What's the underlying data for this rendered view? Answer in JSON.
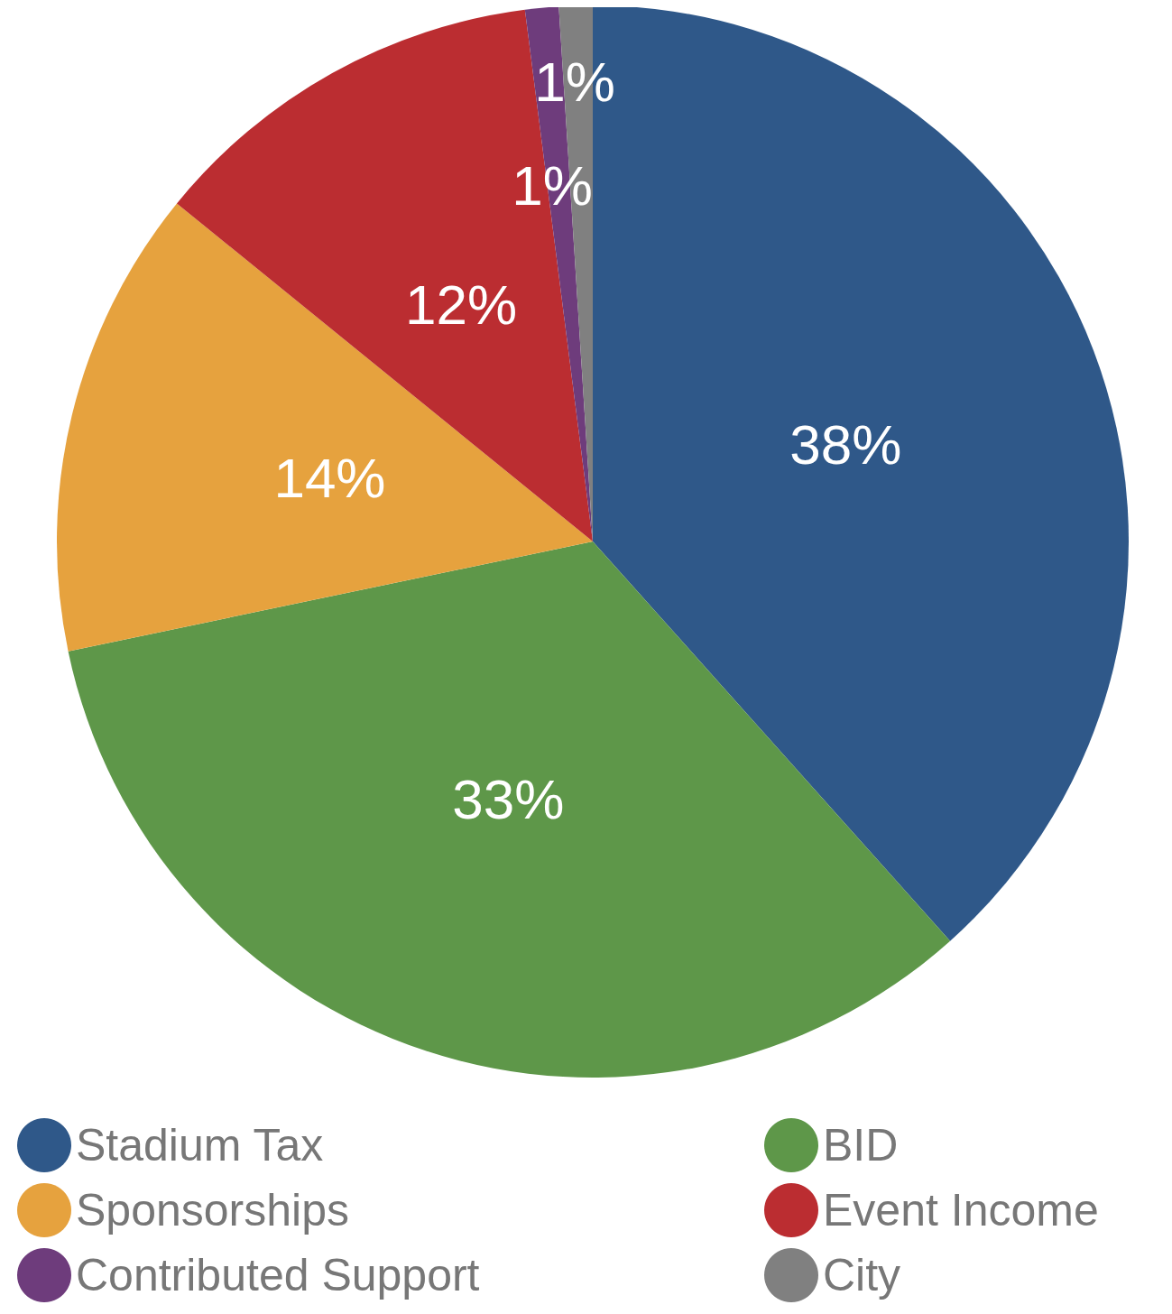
{
  "chart_data": {
    "type": "pie",
    "categories": [
      "Stadium Tax",
      "BID",
      "Sponsorships",
      "Event Income",
      "Contributed Support",
      "City"
    ],
    "values": [
      38,
      33,
      14,
      12,
      1,
      1
    ],
    "colors": [
      "#2f5889",
      "#5e9749",
      "#e6a23e",
      "#bb2d31",
      "#6e3c7c",
      "#808080"
    ],
    "value_labels": [
      "38%",
      "33%",
      "14%",
      "12%",
      "1%",
      "1%"
    ],
    "legend": "bottom"
  }
}
